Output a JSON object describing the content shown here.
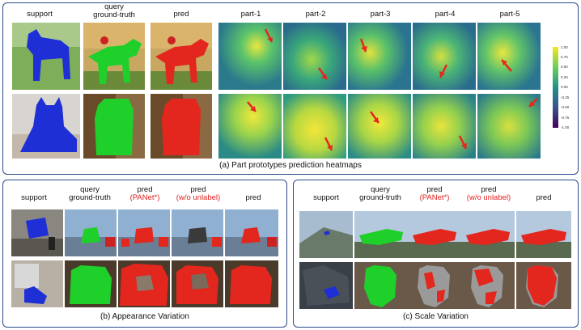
{
  "panel_a": {
    "col_support": "support",
    "col_query_gt": "query\nground-truth",
    "col_pred": "pred",
    "parts": [
      "part-1",
      "part-2",
      "part-3",
      "part-4",
      "part-5"
    ],
    "caption": "(a) Part prototypes prediction heatmaps",
    "colorbar_ticks": [
      "1.00",
      "0.75",
      "0.50",
      "0.25",
      "0.00",
      "-0.25",
      "-0.50",
      "-0.75",
      "-1.00"
    ]
  },
  "panel_b": {
    "col_support": "support",
    "col_query_gt": "query\nground-truth",
    "col_pred1": "pred",
    "col_pred1_sub": "(PANet*)",
    "col_pred2": "pred",
    "col_pred2_sub": "(w/o unlabel)",
    "col_pred3": "pred",
    "caption": "(b) Appearance Variation"
  },
  "panel_c": {
    "col_support": "support",
    "col_query_gt": "query\nground-truth",
    "col_pred1": "pred",
    "col_pred1_sub": "(PANet*)",
    "col_pred2": "pred",
    "col_pred2_sub": "(w/o unlabel)",
    "col_pred3": "pred",
    "caption": "(c) Scale Variation"
  },
  "colors": {
    "support_mask": "#1f2fd6",
    "gt_mask": "#1fcf2a",
    "pred_mask": "#e3261e",
    "arrow": "#e8261c",
    "border": "#2c4a8c"
  }
}
